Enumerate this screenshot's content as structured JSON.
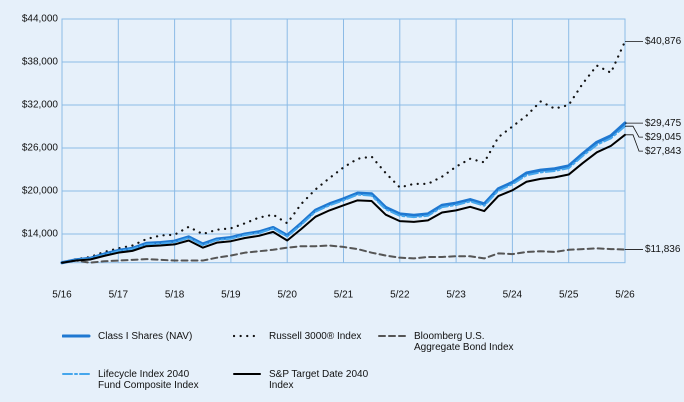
{
  "chart_data": {
    "type": "line",
    "categories": [
      "5/16",
      null,
      null,
      null,
      "5/17",
      null,
      null,
      null,
      "5/18",
      null,
      null,
      null,
      "5/19",
      null,
      null,
      null,
      "5/20",
      null,
      null,
      null,
      "5/21",
      null,
      null,
      null,
      "5/22",
      null,
      null,
      null,
      "5/23",
      null,
      null,
      null,
      "5/24",
      null,
      null,
      null,
      "5/25",
      null,
      null,
      null,
      "5/26"
    ],
    "ylim": [
      10000,
      44000
    ],
    "yticks": [
      {
        "value": 14000,
        "label": "$14,000"
      },
      {
        "value": 20000,
        "label": "$20,000"
      },
      {
        "value": 26000,
        "label": "$26,000"
      },
      {
        "value": 32000,
        "label": "$32,000"
      },
      {
        "value": 38000,
        "label": "$38,000"
      },
      {
        "value": 44000,
        "label": "$44,000"
      }
    ],
    "grid": true,
    "series": [
      {
        "name": "Class I Shares (NAV)",
        "color": "#1f78d1",
        "style": "solid",
        "values": [
          10000,
          10400,
          10600,
          11200,
          11700,
          12000,
          12700,
          12800,
          13000,
          13600,
          12600,
          13300,
          13500,
          14000,
          14300,
          14900,
          13800,
          15500,
          17300,
          18200,
          18900,
          19700,
          19600,
          17700,
          16800,
          16600,
          16800,
          18000,
          18300,
          18800,
          18200,
          20300,
          21200,
          22500,
          22900,
          23100,
          23500,
          25200,
          26800,
          27700,
          29475
        ],
        "value_labels": [
          null,
          null,
          null,
          null,
          null,
          null,
          null,
          null,
          null,
          null,
          null,
          null,
          null,
          null,
          null,
          null,
          null,
          null,
          null,
          null,
          null,
          null,
          null,
          null,
          null,
          null,
          null,
          null,
          null,
          null,
          null,
          null,
          null,
          null,
          null,
          null,
          null,
          null,
          null,
          null,
          "$29,475"
        ]
      },
      {
        "name": "Russell 3000® Index",
        "color": "#111111",
        "style": "dotted",
        "values": [
          10000,
          10500,
          10800,
          11500,
          12000,
          12400,
          13300,
          13800,
          13900,
          15000,
          14000,
          14600,
          14800,
          15500,
          16300,
          16700,
          15500,
          18200,
          20200,
          21800,
          23300,
          24500,
          24800,
          22500,
          20500,
          21000,
          21000,
          22000,
          23400,
          24500,
          24000,
          27500,
          29000,
          30500,
          32500,
          31500,
          32000,
          35000,
          37500,
          36500,
          40876
        ],
        "value_labels": [
          null,
          null,
          null,
          null,
          null,
          null,
          null,
          null,
          null,
          null,
          null,
          null,
          null,
          null,
          null,
          null,
          null,
          null,
          null,
          null,
          null,
          null,
          null,
          null,
          null,
          null,
          null,
          null,
          null,
          null,
          null,
          null,
          null,
          null,
          null,
          null,
          null,
          null,
          null,
          null,
          "$40,876"
        ]
      },
      {
        "name": "Bloomberg U.S. Aggregate Bond Index",
        "color": "#555555",
        "style": "dashed",
        "values": [
          10000,
          10300,
          10000,
          10200,
          10300,
          10400,
          10500,
          10400,
          10300,
          10300,
          10300,
          10700,
          11000,
          11400,
          11600,
          11800,
          12100,
          12300,
          12300,
          12400,
          12200,
          11900,
          11400,
          11000,
          10700,
          10600,
          10800,
          10800,
          10900,
          10900,
          10600,
          11300,
          11200,
          11500,
          11600,
          11500,
          11800,
          11900,
          12000,
          11900,
          11836
        ],
        "value_labels": [
          null,
          null,
          null,
          null,
          null,
          null,
          null,
          null,
          null,
          null,
          null,
          null,
          null,
          null,
          null,
          null,
          null,
          null,
          null,
          null,
          null,
          null,
          null,
          null,
          null,
          null,
          null,
          null,
          null,
          null,
          null,
          null,
          null,
          null,
          null,
          null,
          null,
          null,
          null,
          null,
          "$11,836"
        ]
      },
      {
        "name": "Lifecycle Index 2040 Fund Composite Index",
        "color": "#45a6ec",
        "style": "dashdot",
        "values": [
          10000,
          10350,
          10550,
          11100,
          11600,
          11900,
          12550,
          12650,
          12850,
          13450,
          12450,
          13150,
          13350,
          13850,
          14150,
          14750,
          13650,
          15300,
          17100,
          18000,
          18700,
          19500,
          19350,
          17450,
          16550,
          16350,
          16550,
          17750,
          18050,
          18550,
          17950,
          20050,
          20950,
          22200,
          22600,
          22800,
          23200,
          24900,
          26450,
          27350,
          29045
        ],
        "value_labels": [
          null,
          null,
          null,
          null,
          null,
          null,
          null,
          null,
          null,
          null,
          null,
          null,
          null,
          null,
          null,
          null,
          null,
          null,
          null,
          null,
          null,
          null,
          null,
          null,
          null,
          null,
          null,
          null,
          null,
          null,
          null,
          null,
          null,
          null,
          null,
          null,
          null,
          null,
          null,
          null,
          "$29,045"
        ]
      },
      {
        "name": "S&P Target Date 2040 Index",
        "color": "#000000",
        "style": "solid",
        "values": [
          10000,
          10300,
          10450,
          10950,
          11400,
          11650,
          12300,
          12400,
          12550,
          13100,
          12100,
          12800,
          13000,
          13450,
          13750,
          14300,
          13100,
          14700,
          16400,
          17300,
          18000,
          18700,
          18600,
          16700,
          15800,
          15700,
          15900,
          17000,
          17300,
          17800,
          17200,
          19300,
          20100,
          21300,
          21700,
          21900,
          22300,
          23900,
          25400,
          26300,
          27843
        ],
        "value_labels": [
          null,
          null,
          null,
          null,
          null,
          null,
          null,
          null,
          null,
          null,
          null,
          null,
          null,
          null,
          null,
          null,
          null,
          null,
          null,
          null,
          null,
          null,
          null,
          null,
          null,
          null,
          null,
          null,
          null,
          null,
          null,
          null,
          null,
          null,
          null,
          null,
          null,
          null,
          null,
          null,
          "$27,843"
        ]
      }
    ]
  }
}
